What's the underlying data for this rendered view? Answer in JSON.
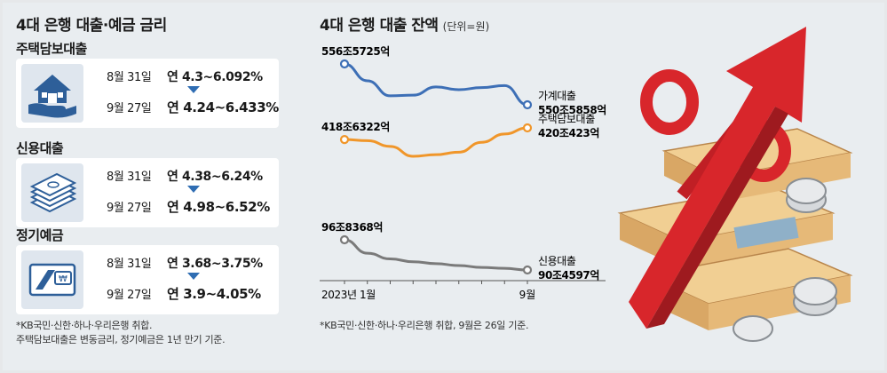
{
  "left_panel": {
    "title": "4대 은행 대출·예금 금리",
    "sections": [
      {
        "title": "주택담보대출",
        "icon": "house-hand-icon",
        "rows": [
          {
            "date": "8월 31일",
            "rate": "연 4.3~6.092%"
          },
          {
            "date": "9월 27일",
            "rate": "연 4.24~6.433%"
          }
        ]
      },
      {
        "title": "신용대출",
        "icon": "banknote-stack-icon",
        "rows": [
          {
            "date": "8월 31일",
            "rate": "연 4.38~6.24%"
          },
          {
            "date": "9월 27일",
            "rate": "연 4.98~6.52%"
          }
        ]
      },
      {
        "title": "정기예금",
        "icon": "bankbook-icon",
        "rows": [
          {
            "date": "8월 31일",
            "rate": "연 3.68~3.75%"
          },
          {
            "date": "9월 27일",
            "rate": "연 3.9~4.05%"
          }
        ]
      }
    ],
    "footnote_1": "*KB국민·신한·하나·우리은행 취합.",
    "footnote_2": "주택담보대출은 변동금리, 정기예금은 1년 만기 기준."
  },
  "chart_data": {
    "type": "line",
    "title": "4대 은행 대출 잔액",
    "unit_label": "(단위=원)",
    "x_labels": [
      "2023년 1월",
      "9월"
    ],
    "series": [
      {
        "name": "가계대출",
        "color": "#3d6fb6",
        "start_label": "556조5725억",
        "end_label": "550조5858억",
        "values": [
          5565725,
          5541000,
          5519000,
          5520000,
          5532000,
          5528000,
          5531000,
          5534000,
          5505858
        ]
      },
      {
        "name": "주택담보대출",
        "color": "#f0962a",
        "start_label": "418조6322억",
        "end_label": "420조423억",
        "values": [
          4186322,
          4185000,
          4178000,
          4166000,
          4168000,
          4171000,
          4183000,
          4193000,
          4200423
        ]
      },
      {
        "name": "신용대출",
        "color": "#7a7a7a",
        "start_label": "96조8368억",
        "end_label": "90조4597억",
        "values": [
          968368,
          940000,
          928000,
          922000,
          918000,
          914000,
          910000,
          908000,
          904597
        ]
      }
    ],
    "footnote": "*KB국민·신한·하나·우리은행 취합, 9월은 26일 기준.",
    "colors": {
      "accent_red": "#d8262b",
      "gold": "#e8b56a"
    }
  }
}
